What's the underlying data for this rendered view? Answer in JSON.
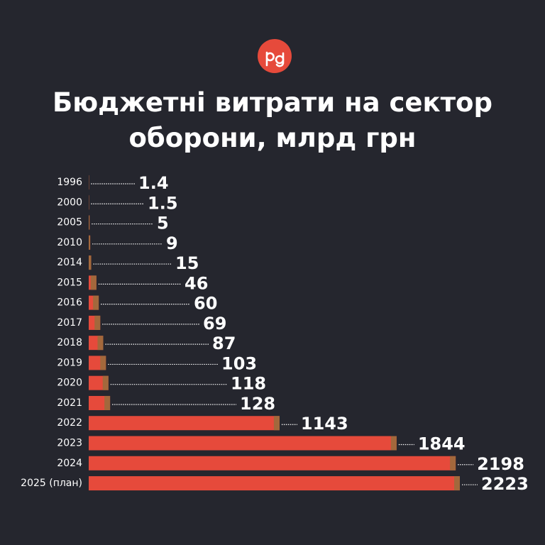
{
  "chart_data": {
    "type": "bar",
    "orientation": "horizontal",
    "title": "Бюджетні витрати на сектор оборони, млрд грн",
    "categories": [
      "1996",
      "2000",
      "2005",
      "2010",
      "2014",
      "2015",
      "2016",
      "2017",
      "2018",
      "2019",
      "2020",
      "2021",
      "2022",
      "2023",
      "2024",
      "2025 (план)"
    ],
    "values": [
      1.4,
      1.5,
      5,
      9,
      15,
      46,
      60,
      69,
      87,
      103,
      118,
      128,
      1143,
      1844,
      2198,
      2223
    ],
    "color": "#e64a3b",
    "xlim": [
      0,
      2223
    ]
  }
}
